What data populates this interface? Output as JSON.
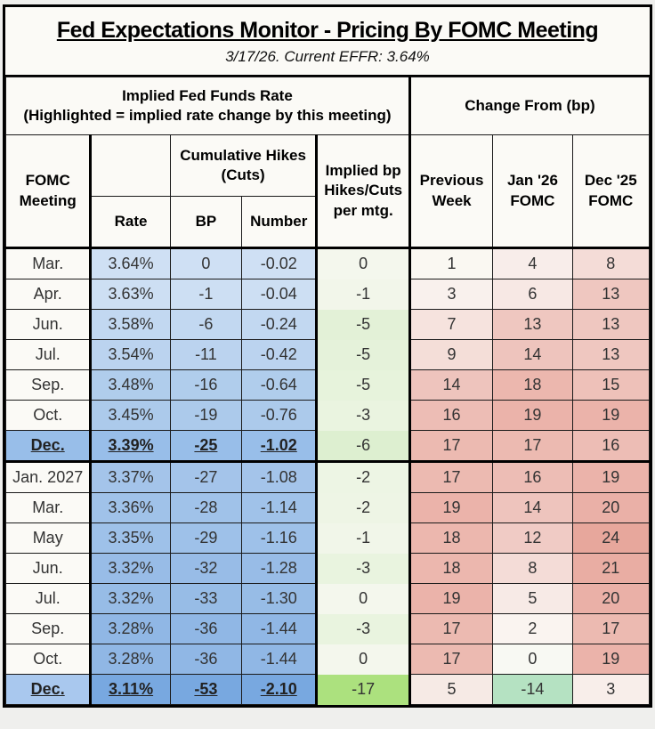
{
  "title": "Fed Expectations Monitor - Pricing By FOMC Meeting",
  "subtitle": "3/17/26. Current EFFR: 3.64%",
  "header": {
    "left_group_line1": "Implied Fed Funds Rate",
    "left_group_line2": "(Highlighted = implied rate change by this meeting)",
    "right_group": "Change From (bp)",
    "fomc_meeting": "FOMC Meeting",
    "cumulative": "Cumulative Hikes (Cuts)",
    "rate": "Rate",
    "bp": "BP",
    "number": "Number",
    "implied": "Implied bp Hikes/Cuts per mtg.",
    "prev_week": "Previous Week",
    "jan26": "Jan '26 FOMC",
    "dec25": "Dec '25 FOMC"
  },
  "colors": {
    "highlight_blue": "#98bee9",
    "deep_highlight_blue": "#78a8e0",
    "bright_green": "#ace17e",
    "mint_green": "#b5e2c2",
    "max_pink": "#e7a79c",
    "off_white": "#fbfaf6"
  },
  "chart_data": {
    "type": "table",
    "columns": [
      "FOMC Meeting",
      "Rate",
      "BP",
      "Number",
      "Implied bp Hikes/Cuts per mtg.",
      "Previous Week",
      "Jan '26 FOMC",
      "Dec '25 FOMC"
    ],
    "rows": [
      {
        "highlighted": false,
        "year_break": false,
        "values": {
          "meeting": "Mar.",
          "rate": "3.64%",
          "bp": "0",
          "number": "-0.02",
          "implied": "0",
          "prev": "1",
          "jan26": "4",
          "dec25": "8"
        },
        "bg": {
          "meeting": "#fbfaf6",
          "rate": "#cfe0f4",
          "bp": "#cfe0f4",
          "number": "#cfe0f4",
          "implied": "#f4f7ed",
          "prev": "#faf8f2",
          "jan26": "#f8edea",
          "dec25": "#f4dcd7"
        }
      },
      {
        "highlighted": false,
        "year_break": false,
        "values": {
          "meeting": "Apr.",
          "rate": "3.63%",
          "bp": "-1",
          "number": "-0.04",
          "implied": "-1",
          "prev": "3",
          "jan26": "6",
          "dec25": "13"
        },
        "bg": {
          "meeting": "#fbfaf6",
          "rate": "#cddff3",
          "bp": "#cddff3",
          "number": "#cddff3",
          "implied": "#f2f6ea",
          "prev": "#f9f1ed",
          "jan26": "#f7e8e4",
          "dec25": "#efc7c0"
        }
      },
      {
        "highlighted": false,
        "year_break": false,
        "values": {
          "meeting": "Jun.",
          "rate": "3.58%",
          "bp": "-6",
          "number": "-0.24",
          "implied": "-5",
          "prev": "7",
          "jan26": "13",
          "dec25": "13"
        },
        "bg": {
          "meeting": "#fbfaf6",
          "rate": "#c2d8f1",
          "bp": "#c2d8f1",
          "number": "#c2d8f1",
          "implied": "#e3f1d7",
          "prev": "#f6e3de",
          "jan26": "#efc7c0",
          "dec25": "#efc7c0"
        }
      },
      {
        "highlighted": false,
        "year_break": false,
        "values": {
          "meeting": "Jul.",
          "rate": "3.54%",
          "bp": "-11",
          "number": "-0.42",
          "implied": "-5",
          "prev": "9",
          "jan26": "14",
          "dec25": "13"
        },
        "bg": {
          "meeting": "#fbfaf6",
          "rate": "#bbd3ef",
          "bp": "#bbd3ef",
          "number": "#bbd3ef",
          "implied": "#e5f2da",
          "prev": "#f4ded8",
          "jan26": "#eec4bd",
          "dec25": "#efc7c0"
        }
      },
      {
        "highlighted": false,
        "year_break": false,
        "values": {
          "meeting": "Sep.",
          "rate": "3.48%",
          "bp": "-16",
          "number": "-0.64",
          "implied": "-5",
          "prev": "14",
          "jan26": "18",
          "dec25": "15"
        },
        "bg": {
          "meeting": "#fbfaf6",
          "rate": "#b0cdec",
          "bp": "#b0cdec",
          "number": "#b0cdec",
          "implied": "#e7f3dc",
          "prev": "#eec4bd",
          "jan26": "#ecb7ae",
          "dec25": "#eec1b9"
        }
      },
      {
        "highlighted": false,
        "year_break": false,
        "values": {
          "meeting": "Oct.",
          "rate": "3.45%",
          "bp": "-19",
          "number": "-0.76",
          "implied": "-3",
          "prev": "16",
          "jan26": "19",
          "dec25": "19"
        },
        "bg": {
          "meeting": "#fbfaf6",
          "rate": "#accaeb",
          "bp": "#accaeb",
          "number": "#accaeb",
          "implied": "#eaf4e0",
          "prev": "#edbdb5",
          "jan26": "#ebb3aa",
          "dec25": "#ebb3aa"
        }
      },
      {
        "highlighted": true,
        "year_break": false,
        "values": {
          "meeting": "Dec.",
          "rate": "3.39%",
          "bp": "-25",
          "number": "-1.02",
          "implied": "-6",
          "prev": "17",
          "jan26": "17",
          "dec25": "16"
        },
        "bg": {
          "meeting": "#98bee9",
          "rate": "#98bee9",
          "bp": "#98bee9",
          "number": "#98bee9",
          "implied": "#ddefd0",
          "prev": "#ecbab1",
          "jan26": "#ecbab1",
          "dec25": "#edbdb5"
        }
      },
      {
        "highlighted": false,
        "year_break": true,
        "values": {
          "meeting": "Jan. 2027",
          "rate": "3.37%",
          "bp": "-27",
          "number": "-1.08",
          "implied": "-2",
          "prev": "17",
          "jan26": "16",
          "dec25": "19"
        },
        "bg": {
          "meeting": "#fbfaf6",
          "rate": "#a4c4ea",
          "bp": "#a4c4ea",
          "number": "#a4c4ea",
          "implied": "#edf5e4",
          "prev": "#ecbab1",
          "jan26": "#edbdb5",
          "dec25": "#ebb3aa"
        }
      },
      {
        "highlighted": false,
        "year_break": false,
        "values": {
          "meeting": "Mar.",
          "rate": "3.36%",
          "bp": "-28",
          "number": "-1.14",
          "implied": "-2",
          "prev": "19",
          "jan26": "14",
          "dec25": "20"
        },
        "bg": {
          "meeting": "#fbfaf6",
          "rate": "#a0c2e9",
          "bp": "#a0c2e9",
          "number": "#a0c2e9",
          "implied": "#eef5e5",
          "prev": "#ebb3aa",
          "jan26": "#eec4bd",
          "dec25": "#eab0a7"
        }
      },
      {
        "highlighted": false,
        "year_break": false,
        "values": {
          "meeting": "May",
          "rate": "3.35%",
          "bp": "-29",
          "number": "-1.16",
          "implied": "-1",
          "prev": "18",
          "jan26": "12",
          "dec25": "24"
        },
        "bg": {
          "meeting": "#fbfaf6",
          "rate": "#9ec1e9",
          "bp": "#9ec1e9",
          "number": "#9ec1e9",
          "implied": "#f1f6e9",
          "prev": "#ecb7ae",
          "jan26": "#f0cbc5",
          "dec25": "#e7a79c"
        }
      },
      {
        "highlighted": false,
        "year_break": false,
        "values": {
          "meeting": "Jun.",
          "rate": "3.32%",
          "bp": "-32",
          "number": "-1.28",
          "implied": "-3",
          "prev": "18",
          "jan26": "8",
          "dec25": "21"
        },
        "bg": {
          "meeting": "#fbfaf6",
          "rate": "#98bce7",
          "bp": "#98bce7",
          "number": "#98bce7",
          "implied": "#e9f4df",
          "prev": "#ecb7ae",
          "jan26": "#f4dcd7",
          "dec25": "#e9ada3"
        }
      },
      {
        "highlighted": false,
        "year_break": false,
        "values": {
          "meeting": "Jul.",
          "rate": "3.32%",
          "bp": "-33",
          "number": "-1.30",
          "implied": "0",
          "prev": "19",
          "jan26": "5",
          "dec25": "20"
        },
        "bg": {
          "meeting": "#fbfaf6",
          "rate": "#97bce6",
          "bp": "#97bce6",
          "number": "#97bce6",
          "implied": "#f4f7ed",
          "prev": "#ebb3aa",
          "jan26": "#f7eae6",
          "dec25": "#eab0a7"
        }
      },
      {
        "highlighted": false,
        "year_break": false,
        "values": {
          "meeting": "Sep.",
          "rate": "3.28%",
          "bp": "-36",
          "number": "-1.44",
          "implied": "-3",
          "prev": "17",
          "jan26": "2",
          "dec25": "17"
        },
        "bg": {
          "meeting": "#fbfaf6",
          "rate": "#90b7e5",
          "bp": "#90b7e5",
          "number": "#90b7e5",
          "implied": "#e9f4df",
          "prev": "#ecbab1",
          "jan26": "#faf4f0",
          "dec25": "#ecbab1"
        }
      },
      {
        "highlighted": false,
        "year_break": false,
        "values": {
          "meeting": "Oct.",
          "rate": "3.28%",
          "bp": "-36",
          "number": "-1.44",
          "implied": "0",
          "prev": "17",
          "jan26": "0",
          "dec25": "19"
        },
        "bg": {
          "meeting": "#fbfaf6",
          "rate": "#90b7e5",
          "bp": "#90b7e5",
          "number": "#90b7e5",
          "implied": "#f4f7ed",
          "prev": "#ecbab1",
          "jan26": "#f8f9f3",
          "dec25": "#ebb3aa"
        }
      },
      {
        "highlighted": true,
        "year_break": false,
        "values": {
          "meeting": "Dec.",
          "rate": "3.11%",
          "bp": "-53",
          "number": "-2.10",
          "implied": "-17",
          "prev": "5",
          "jan26": "-14",
          "dec25": "3"
        },
        "bg": {
          "meeting": "#a9c8ee",
          "rate": "#78a8e0",
          "bp": "#78a8e0",
          "number": "#78a8e0",
          "implied": "#ace17e",
          "prev": "#f6eae5",
          "jan26": "#b5e2c2",
          "dec25": "#f8eeea"
        }
      }
    ]
  }
}
